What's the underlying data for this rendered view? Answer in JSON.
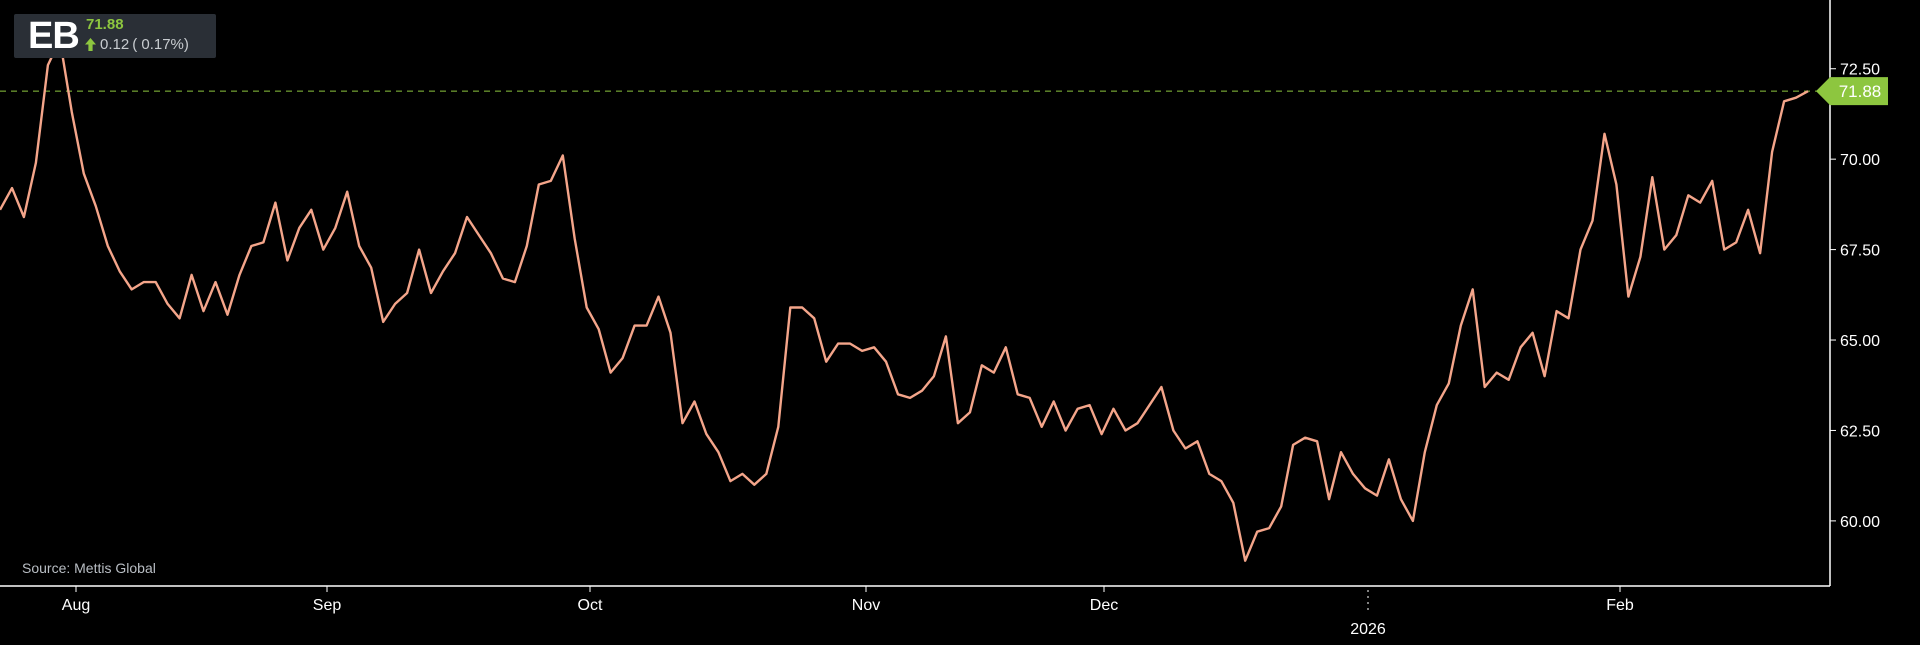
{
  "header": {
    "ticker": "EB",
    "price": "71.88",
    "change": "0.12",
    "change_pct": "( 0.17%)",
    "direction_icon": "arrow-up-icon",
    "up_color": "#8dc63f"
  },
  "source": "Source: Mettis Global",
  "colors": {
    "background": "#000000",
    "line": "#f4a58a",
    "axis_text": "#ffffff",
    "axis_line": "#ffffff",
    "last_price": "#8dc63f"
  },
  "chart_data": {
    "type": "line",
    "ylim": [
      58.2,
      74.4
    ],
    "y_ticks": [
      60.0,
      62.5,
      65.0,
      67.5,
      70.0,
      72.5
    ],
    "y_tick_labels": [
      "60.00",
      "62.50",
      "65.00",
      "67.50",
      "70.00",
      "72.50"
    ],
    "x_labels": [
      "Aug",
      "Sep",
      "Oct",
      "Nov",
      "Dec",
      "2026",
      "Feb"
    ],
    "last_price": 71.88,
    "last_price_label": "71.88",
    "grid": false,
    "series": [
      {
        "values": [
          68.6,
          69.2,
          68.4,
          69.9,
          72.6,
          73.3,
          71.3,
          69.6,
          68.7,
          67.6,
          66.9,
          66.4,
          66.6,
          66.6,
          66.0,
          65.6,
          66.8,
          65.8,
          66.6,
          65.7,
          66.8,
          67.6,
          67.7,
          68.8,
          67.2,
          68.1,
          68.6,
          67.5,
          68.1,
          69.1,
          67.6,
          67.0,
          65.5,
          66.0,
          66.3,
          67.5,
          66.3,
          66.9,
          67.4,
          68.4,
          67.9,
          67.4,
          66.7,
          66.6,
          67.6,
          69.3,
          69.4,
          70.1,
          67.8,
          65.9,
          65.3,
          64.1,
          64.5,
          65.4,
          65.4,
          66.2,
          65.2,
          62.7,
          63.3,
          62.4,
          61.9,
          61.1,
          61.3,
          61.0,
          61.3,
          62.6,
          65.9,
          65.9,
          65.6,
          64.4,
          64.9,
          64.9,
          64.7,
          64.8,
          64.4,
          63.5,
          63.4,
          63.6,
          64.0,
          65.1,
          62.7,
          63.0,
          64.3,
          64.1,
          64.8,
          63.5,
          63.4,
          62.6,
          63.3,
          62.5,
          63.1,
          63.2,
          62.4,
          63.1,
          62.5,
          62.7,
          63.2,
          63.7,
          62.5,
          62.0,
          62.2,
          61.3,
          61.1,
          60.5,
          58.9,
          59.7,
          59.8,
          60.4,
          62.1,
          62.3,
          62.2,
          60.6,
          61.9,
          61.3,
          60.9,
          60.7,
          61.7,
          60.6,
          60.0,
          61.9,
          63.2,
          63.8,
          65.4,
          66.4,
          63.7,
          64.1,
          63.9,
          64.8,
          65.2,
          64.0,
          65.8,
          65.6,
          67.5,
          68.3,
          70.7,
          69.3,
          66.2,
          67.3,
          69.5,
          67.5,
          67.9,
          69.0,
          68.8,
          69.4,
          67.5,
          67.7,
          68.6,
          67.4,
          70.2,
          71.6,
          71.7,
          71.88
        ]
      }
    ]
  }
}
